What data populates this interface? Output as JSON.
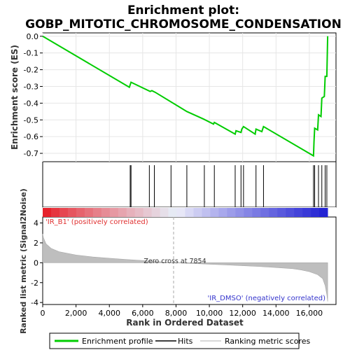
{
  "chart_data": {
    "type": "line",
    "title": "Enrichment plot:\nGOBP_MITOTIC_CHROMOSOME_CONDENSATION",
    "title_lines": [
      "Enrichment plot:",
      "GOBP_MITOTIC_CHROMOSOME_CONDENSATION"
    ],
    "es_panel": {
      "ylabel": "Enrichment score (ES)",
      "ylim": [
        -0.75,
        0.02
      ],
      "yticks": [
        0.0,
        -0.1,
        -0.2,
        -0.3,
        -0.4,
        -0.5,
        -0.6,
        -0.7
      ],
      "ytick_labels": [
        "0.0",
        "-0.1",
        "-0.2",
        "-0.3",
        "-0.4",
        "-0.5",
        "-0.6",
        "-0.7"
      ],
      "series": {
        "name": "Enrichment profile",
        "color": "#00cc00",
        "x": [
          0,
          5200,
          5300,
          6450,
          6550,
          6750,
          8650,
          9650,
          10250,
          10300,
          11550,
          11600,
          11900,
          11950,
          12050,
          12750,
          12800,
          13150,
          13250,
          16250,
          16280,
          16320,
          16500,
          16550,
          16700,
          16750,
          16900,
          16950,
          17050,
          17100
        ],
        "y": [
          0.0,
          -0.305,
          -0.275,
          -0.33,
          -0.325,
          -0.335,
          -0.45,
          -0.495,
          -0.525,
          -0.515,
          -0.585,
          -0.565,
          -0.575,
          -0.555,
          -0.54,
          -0.585,
          -0.555,
          -0.57,
          -0.54,
          -0.715,
          -0.63,
          -0.55,
          -0.56,
          -0.47,
          -0.48,
          -0.37,
          -0.36,
          -0.24,
          -0.24,
          0.0
        ]
      }
    },
    "hits": {
      "name": "Hits",
      "x": [
        5250,
        5300,
        6400,
        6700,
        7700,
        8650,
        9700,
        10300,
        11550,
        11900,
        12050,
        12800,
        13250,
        16250,
        16320,
        16550,
        16750,
        16950,
        17050
      ]
    },
    "rank_panel": {
      "ylabel": "Ranked list metric (Signal2Noise)",
      "xlabel": "Rank in Ordered Dataset",
      "xlim": [
        0,
        17600
      ],
      "ylim": [
        -4.2,
        4.6
      ],
      "xticks": [
        0,
        2000,
        4000,
        6000,
        8000,
        10000,
        12000,
        14000,
        16000
      ],
      "xtick_labels": [
        "0",
        "2,000",
        "4,000",
        "6,000",
        "8,000",
        "10,000",
        "12,000",
        "14,000",
        "16,000"
      ],
      "yticks": [
        4,
        2,
        0,
        -2,
        -4
      ],
      "ytick_labels": [
        "4",
        "2",
        "0",
        "-2",
        "-4"
      ],
      "metric_curve": {
        "name": "Ranking metric scores",
        "x": [
          0,
          50,
          200,
          500,
          1000,
          2000,
          3000,
          4000,
          5000,
          6000,
          7000,
          7854,
          9000,
          10000,
          11000,
          12000,
          13000,
          14000,
          15000,
          15500,
          16000,
          16500,
          16800,
          16950,
          17050,
          17100
        ],
        "y": [
          2.9,
          2.5,
          1.9,
          1.45,
          1.1,
          0.78,
          0.58,
          0.45,
          0.33,
          0.22,
          0.1,
          0.0,
          -0.08,
          -0.15,
          -0.22,
          -0.3,
          -0.38,
          -0.48,
          -0.6,
          -0.72,
          -0.9,
          -1.2,
          -1.6,
          -2.3,
          -3.2,
          -3.9
        ]
      },
      "zero_cross": 7854,
      "zero_cross_label": "Zero cross at 7854",
      "positive_label": "'IR_B1' (positively correlated)",
      "negative_label": "'IR_DMSO' (negatively correlated)"
    },
    "legend": {
      "placement": "bottom",
      "entries": [
        "Enrichment profile",
        "Hits",
        "Ranking metric scores"
      ]
    },
    "colors": {
      "enrichment": "#00cc00",
      "hits": "#000000",
      "metric_fill": "#bebebe",
      "positive_text": "#e03030",
      "negative_text": "#3333cc"
    }
  }
}
